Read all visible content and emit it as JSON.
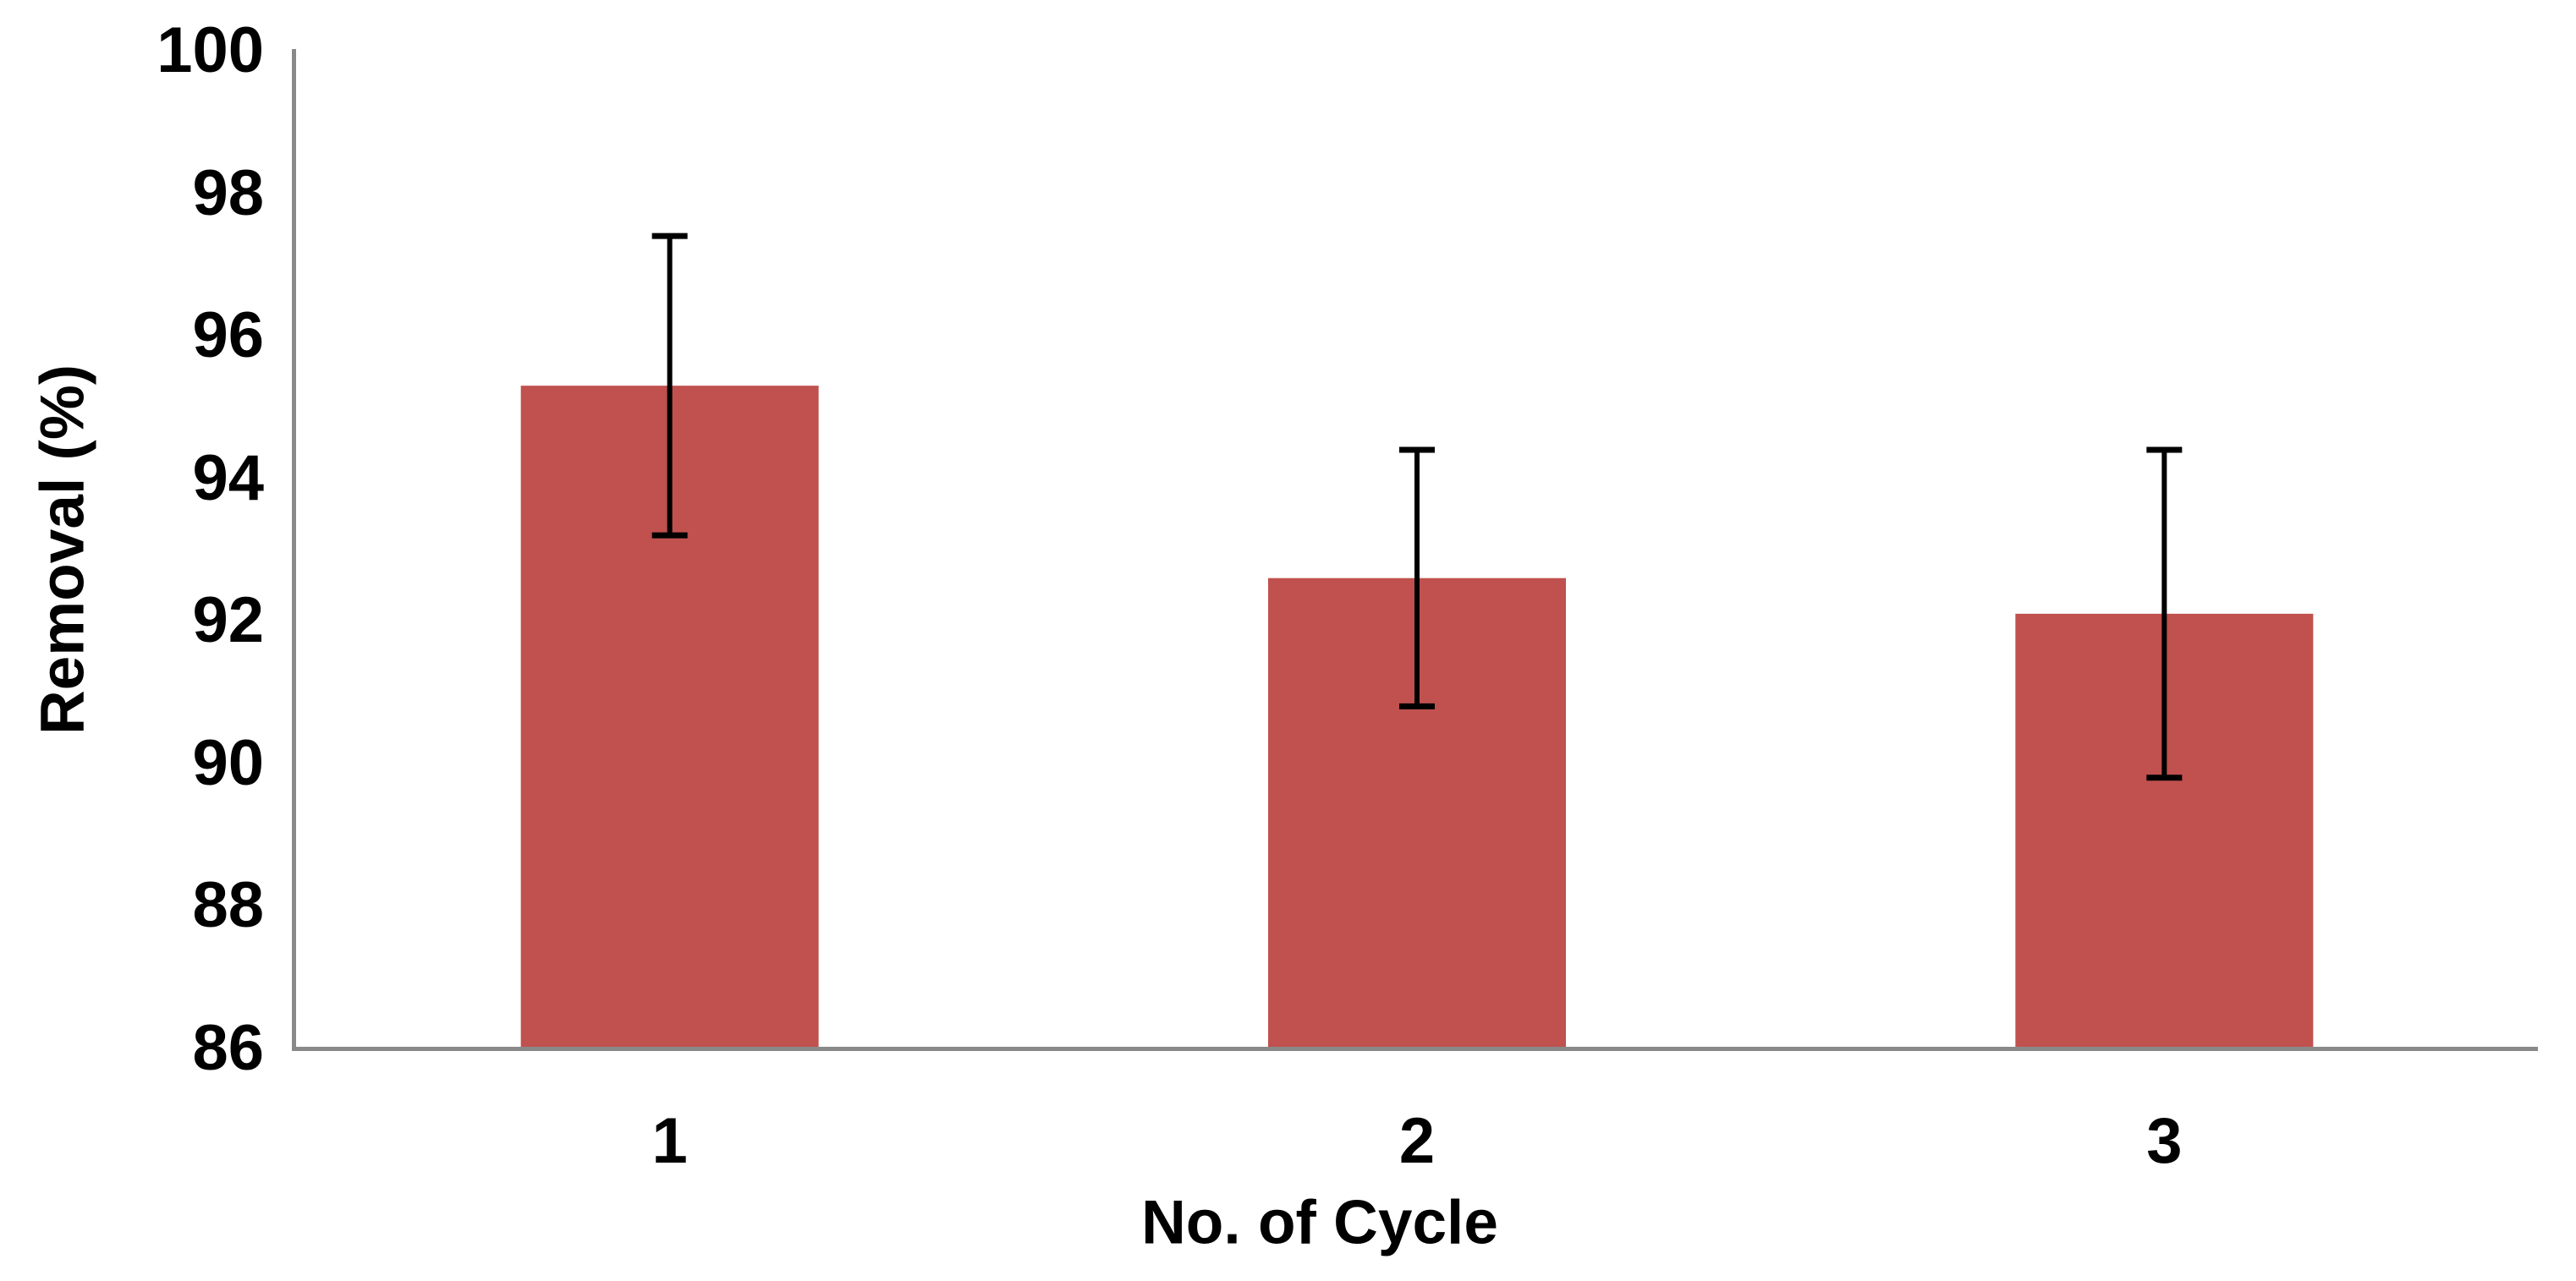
{
  "chart_data": {
    "type": "bar",
    "title": "",
    "categories": [
      "1",
      "2",
      "3"
    ],
    "values": [
      95.3,
      92.6,
      92.1
    ],
    "errors": [
      2.1,
      1.8,
      2.3
    ],
    "error_ranges": [
      {
        "low": 93.2,
        "high": 97.4
      },
      {
        "low": 90.8,
        "high": 94.4
      },
      {
        "low": 89.8,
        "high": 94.4
      }
    ],
    "xlabel": "No. of Cycle",
    "ylabel": "Removal (%)",
    "ylim": [
      86,
      100
    ],
    "ytick_step": 2,
    "yticks": [
      100,
      98,
      96,
      94,
      92,
      90,
      88,
      86
    ],
    "grid": false,
    "legend": false,
    "colors": {
      "bar_fill": "#C0514E",
      "error_bar": "#000000",
      "axis_line": "#898989",
      "text": "#000000",
      "background": "#FFFFFF"
    }
  }
}
